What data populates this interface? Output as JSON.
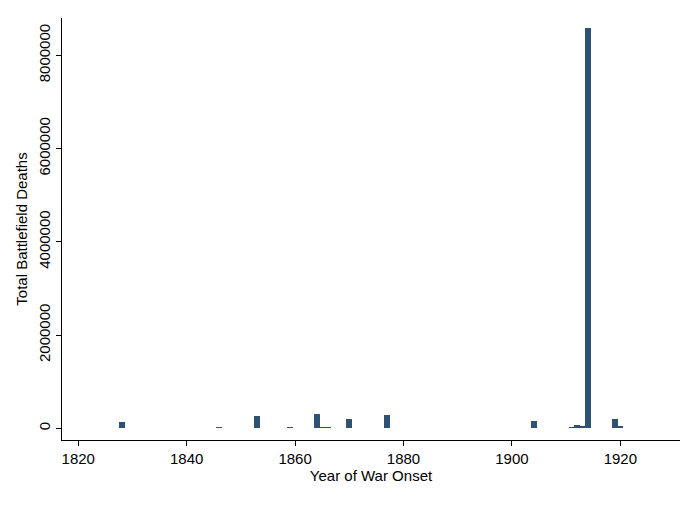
{
  "chart_data": {
    "type": "bar",
    "x_label": "Year of War Onset",
    "y_label": "Total Battlefield Deaths",
    "x": [
      1823,
      1828,
      1846,
      1848,
      1849,
      1853,
      1856,
      1859,
      1860,
      1862,
      1864,
      1865,
      1866,
      1870,
      1876,
      1877,
      1879,
      1882,
      1884,
      1885,
      1894,
      1897,
      1898,
      1904,
      1906,
      1907,
      1909,
      1911,
      1912,
      1913,
      1914,
      1919,
      1920,
      1929
    ],
    "values": [
      1000,
      130000,
      19000,
      6000,
      2000,
      264000,
      2000,
      22500,
      1000,
      1000,
      310000,
      20000,
      36000,
      204000,
      4000,
      285000,
      14000,
      2000,
      2000,
      1000,
      15000,
      2000,
      10000,
      151000,
      1000,
      1000,
      10000,
      20000,
      82000,
      60000,
      8578000,
      190000,
      40000,
      3200
    ],
    "color": "#2d5274",
    "xlim": [
      1817,
      1931
    ],
    "xticks": [
      1820,
      1840,
      1860,
      1880,
      1900,
      1920
    ],
    "ylim": [
      -250000,
      8800000
    ],
    "yticks": [
      0,
      2000000,
      4000000,
      6000000,
      8000000
    ],
    "grid": false
  }
}
